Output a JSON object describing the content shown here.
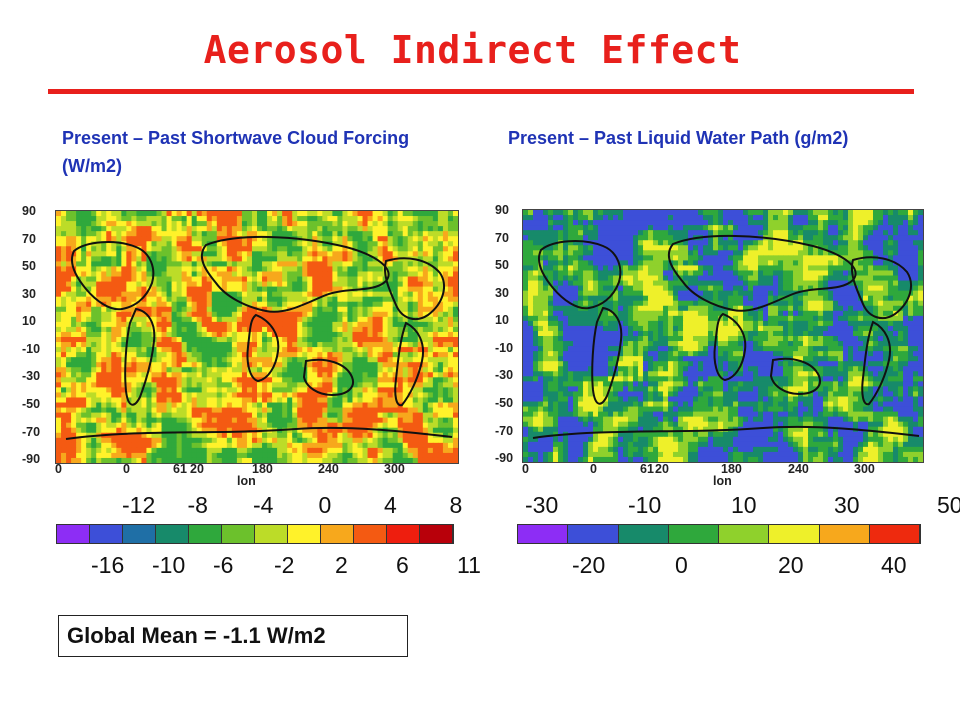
{
  "title": "Aerosol Indirect Effect",
  "global_mean": "Global Mean = -1.1 W/m2",
  "chart_data": [
    {
      "type": "heatmap",
      "title": "Present – Past Shortwave Cloud Forcing (W/m2)",
      "ylabel": "",
      "xlabel": "lon",
      "y_ticks": [
        "90",
        "70",
        "50",
        "30",
        "10",
        "-10",
        "-30",
        "-50",
        "-70",
        "-90"
      ],
      "x_ticks": [
        "0",
        "0",
        "61",
        "20",
        "180",
        "240",
        "300"
      ],
      "colorbar": {
        "top_labels": [
          "-12",
          "-8",
          "-4",
          "0",
          "4",
          "8"
        ],
        "bottom_labels": [
          "-16",
          "-10",
          "-6",
          "-2",
          "2",
          "6",
          "11"
        ],
        "colors": [
          "#8d2df5",
          "#3d4fd8",
          "#1f6fa6",
          "#178a6a",
          "#2fa83c",
          "#6cc12c",
          "#bcdc28",
          "#fff22a",
          "#f7a81c",
          "#f45a12",
          "#ee1e0e",
          "#b8000a"
        ]
      }
    },
    {
      "type": "heatmap",
      "title": "Present – Past Liquid Water Path (g/m2)",
      "ylabel": "",
      "xlabel": "lon",
      "y_ticks": [
        "90",
        "70",
        "50",
        "30",
        "10",
        "-10",
        "-30",
        "-50",
        "-70",
        "-90"
      ],
      "x_ticks": [
        "0",
        "0",
        "61",
        "20",
        "180",
        "240",
        "300"
      ],
      "colorbar": {
        "top_labels": [
          "-30",
          "-10",
          "10",
          "30",
          "50"
        ],
        "bottom_labels": [
          "-20",
          "0",
          "20",
          "40"
        ],
        "colors": [
          "#8d2df5",
          "#3d4fd8",
          "#178a6a",
          "#2fa83c",
          "#8fd12c",
          "#eef02a",
          "#f7a81c",
          "#ee2a0e"
        ]
      }
    }
  ]
}
